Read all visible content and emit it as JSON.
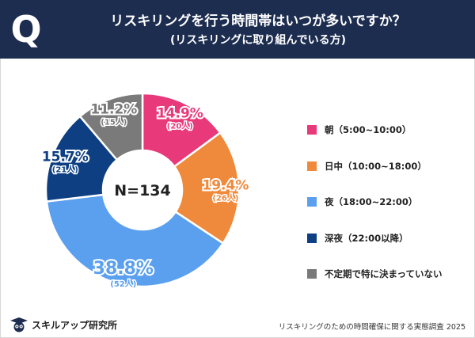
{
  "header": {
    "badge": "Q",
    "title": "リスキリングを行う時間帯はいつが多いですか？",
    "subtitle": "(リスキリングに取り組んでいる方)"
  },
  "chart_data": {
    "type": "pie",
    "center_label": "N=134",
    "slices": [
      {
        "name": "朝（5:00~10:00）",
        "percent_label": "14.9%",
        "count_label": "(20人)",
        "value": 14.9,
        "count": 20,
        "color": "#e8397a"
      },
      {
        "name": "日中（10:00~18:00）",
        "percent_label": "19.4%",
        "count_label": "(26人)",
        "value": 19.4,
        "count": 26,
        "color": "#ef8a3c"
      },
      {
        "name": "夜（18:00~22:00）",
        "percent_label": "38.8%",
        "count_label": "(52人)",
        "value": 38.8,
        "count": 52,
        "color": "#5ba0ee"
      },
      {
        "name": "深夜（22:00以降）",
        "percent_label": "15.7%",
        "count_label": "(21人)",
        "value": 15.7,
        "count": 21,
        "color": "#0d3f82"
      },
      {
        "name": "不定期で特に決まっていない",
        "percent_label": "11.2%",
        "count_label": "(15人)",
        "value": 11.2,
        "count": 15,
        "color": "#7a7a7a"
      }
    ]
  },
  "footer": {
    "brand": "スキルアップ研究所",
    "note": "リスキリングのための時間確保に関する実態調査 2025"
  }
}
